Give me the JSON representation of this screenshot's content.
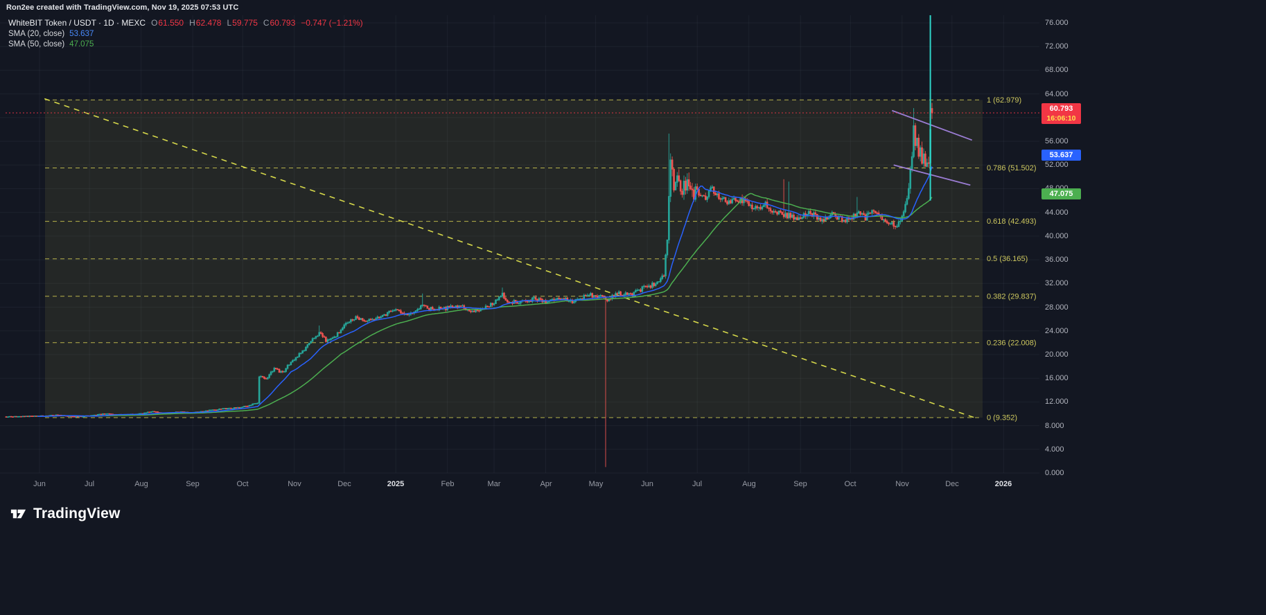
{
  "header": {
    "created_text": "Ron2ee created with TradingView.com, Nov 19, 2025 07:53 UTC"
  },
  "legend": {
    "title": "WhiteBIT Token / USDT · 1D · MEXC",
    "ohlc": {
      "o_label": "O",
      "o_value": "61.550",
      "h_label": "H",
      "h_value": "62.478",
      "l_label": "L",
      "l_value": "59.775",
      "c_label": "C",
      "c_value": "60.793",
      "change": "−0.747 (−1.21%)"
    },
    "indicators": [
      {
        "label": "SMA (20, close)",
        "value": "53.637"
      },
      {
        "label": "SMA (50, close)",
        "value": "47.075"
      }
    ]
  },
  "price_axis": {
    "labels": [
      {
        "text": "76.000",
        "price": 76
      },
      {
        "text": "72.000",
        "price": 72
      },
      {
        "text": "68.000",
        "price": 68
      },
      {
        "text": "64.000",
        "price": 64
      },
      {
        "text": "56.000",
        "price": 56
      },
      {
        "text": "52.000",
        "price": 52
      },
      {
        "text": "48.000",
        "price": 48
      },
      {
        "text": "44.000",
        "price": 44
      },
      {
        "text": "40.000",
        "price": 40
      },
      {
        "text": "36.000",
        "price": 36
      },
      {
        "text": "32.000",
        "price": 32
      },
      {
        "text": "28.000",
        "price": 28
      },
      {
        "text": "24.000",
        "price": 24
      },
      {
        "text": "20.000",
        "price": 20
      },
      {
        "text": "16.000",
        "price": 16
      },
      {
        "text": "12.000",
        "price": 12
      },
      {
        "text": "8.000",
        "price": 8
      },
      {
        "text": "4.000",
        "price": 4
      },
      {
        "text": "0.000",
        "price": 0
      }
    ],
    "badges": {
      "price": {
        "value": "60.793",
        "countdown": "16:06:10",
        "price": 60.793
      },
      "sma20": {
        "value": "53.637",
        "price": 53.637
      },
      "sma50": {
        "value": "47.075",
        "price": 47.075
      }
    }
  },
  "time_axis": {
    "labels": [
      {
        "text": "Jun",
        "day": 0
      },
      {
        "text": "Jul",
        "day": 30
      },
      {
        "text": "Aug",
        "day": 61
      },
      {
        "text": "Sep",
        "day": 92
      },
      {
        "text": "Oct",
        "day": 122
      },
      {
        "text": "Nov",
        "day": 153
      },
      {
        "text": "Dec",
        "day": 183
      },
      {
        "text": "2025",
        "day": 214,
        "year": true
      },
      {
        "text": "Feb",
        "day": 245
      },
      {
        "text": "Mar",
        "day": 273
      },
      {
        "text": "Apr",
        "day": 304
      },
      {
        "text": "May",
        "day": 334
      },
      {
        "text": "Jun",
        "day": 365
      },
      {
        "text": "Jul",
        "day": 395
      },
      {
        "text": "Aug",
        "day": 426
      },
      {
        "text": "Sep",
        "day": 457
      },
      {
        "text": "Oct",
        "day": 487
      },
      {
        "text": "Nov",
        "day": 518
      },
      {
        "text": "Dec",
        "day": 548
      },
      {
        "text": "2026",
        "day": 579,
        "year": true
      }
    ]
  },
  "footer": {
    "brand": "TradingView"
  },
  "colors": {
    "background": "#131722",
    "up": "#26a69a",
    "down": "#ef5350",
    "sma20": "#2962ff",
    "sma50": "#4caf50",
    "fib": "#b9b44b",
    "fib_label": "#cdc75e",
    "fib_zone": "rgba(187,182,74,0.10)",
    "trend": "#d6d84a",
    "channel": "#9b7dd4",
    "price_line": "#f23645",
    "spike": "#2fd5c8",
    "badge_price": "#f23645",
    "badge_sma20": "#2962ff",
    "badge_sma50": "#4caf50"
  },
  "chart_data": {
    "type": "candlestick",
    "symbol": "WhiteBIT Token / USDT",
    "exchange": "MEXC",
    "interval": "1D",
    "title": "WhiteBIT Token / USDT · 1D · MEXC",
    "last": {
      "open": 61.55,
      "high": 62.478,
      "low": 59.775,
      "close": 60.793,
      "change": -0.747,
      "change_pct": -1.21
    },
    "sma": [
      {
        "window": 20,
        "value": 53.637
      },
      {
        "window": 50,
        "value": 47.075
      }
    ],
    "fib_levels": [
      {
        "level": 1,
        "price": 62.979,
        "label": "1 (62.979)"
      },
      {
        "level": 0.786,
        "price": 51.502,
        "label": "0.786 (51.502)"
      },
      {
        "level": 0.618,
        "price": 42.493,
        "label": "0.618 (42.493)"
      },
      {
        "level": 0.5,
        "price": 36.165,
        "label": "0.5 (36.165)"
      },
      {
        "level": 0.382,
        "price": 29.837,
        "label": "0.382 (29.837)"
      },
      {
        "level": 0.236,
        "price": 22.008,
        "label": "0.236 (22.008)"
      },
      {
        "level": 0,
        "price": 9.352,
        "label": "0 (9.352)"
      }
    ],
    "ylim": [
      0,
      77.5
    ],
    "day_range": [
      -20,
      536
    ],
    "current_price_line": 60.793,
    "price_anchors": [
      [
        -20,
        9.5
      ],
      [
        0,
        9.6
      ],
      [
        12,
        9.8
      ],
      [
        22,
        9.5
      ],
      [
        30,
        9.7
      ],
      [
        40,
        10.0
      ],
      [
        50,
        9.8
      ],
      [
        61,
        10.0
      ],
      [
        68,
        10.4
      ],
      [
        76,
        10.1
      ],
      [
        84,
        10.3
      ],
      [
        92,
        10.2
      ],
      [
        100,
        10.5
      ],
      [
        108,
        10.8
      ],
      [
        115,
        10.9
      ],
      [
        122,
        11.2
      ],
      [
        127,
        11.5
      ],
      [
        131,
        11.8
      ],
      [
        132,
        16.3
      ],
      [
        136,
        15.8
      ],
      [
        141,
        17.6
      ],
      [
        146,
        16.9
      ],
      [
        151,
        18.8
      ],
      [
        153,
        19.2
      ],
      [
        158,
        20.5
      ],
      [
        163,
        22.3
      ],
      [
        168,
        23.6
      ],
      [
        172,
        22.4
      ],
      [
        178,
        23.2
      ],
      [
        183,
        25.1
      ],
      [
        190,
        26.2
      ],
      [
        196,
        25.4
      ],
      [
        205,
        26.6
      ],
      [
        214,
        27.4
      ],
      [
        222,
        26.8
      ],
      [
        230,
        28.2
      ],
      [
        238,
        27.6
      ],
      [
        245,
        27.9
      ],
      [
        252,
        28.3
      ],
      [
        260,
        27.2
      ],
      [
        266,
        27.8
      ],
      [
        273,
        28.6
      ],
      [
        278,
        30.3
      ],
      [
        281,
        28.7
      ],
      [
        290,
        29.1
      ],
      [
        298,
        29.4
      ],
      [
        304,
        29.0
      ],
      [
        312,
        29.6
      ],
      [
        320,
        28.9
      ],
      [
        327,
        29.8
      ],
      [
        334,
        30.1
      ],
      [
        341,
        29.4
      ],
      [
        348,
        30.4
      ],
      [
        355,
        30.1
      ],
      [
        361,
        31.0
      ],
      [
        365,
        31.4
      ],
      [
        371,
        32.2
      ],
      [
        375,
        33.5
      ],
      [
        377,
        39.0
      ],
      [
        378,
        47.0
      ],
      [
        379,
        52.5
      ],
      [
        381,
        49.0
      ],
      [
        383,
        51.5
      ],
      [
        386,
        47.5
      ],
      [
        389,
        49.5
      ],
      [
        392,
        46.8
      ],
      [
        395,
        47.6
      ],
      [
        400,
        46.2
      ],
      [
        404,
        48.1
      ],
      [
        408,
        46.6
      ],
      [
        413,
        45.6
      ],
      [
        418,
        46.4
      ],
      [
        422,
        45.9
      ],
      [
        426,
        45.4
      ],
      [
        431,
        44.6
      ],
      [
        436,
        45.3
      ],
      [
        441,
        44.2
      ],
      [
        446,
        43.8
      ],
      [
        451,
        43.4
      ],
      [
        457,
        43.1
      ],
      [
        463,
        44.0
      ],
      [
        469,
        42.8
      ],
      [
        475,
        43.6
      ],
      [
        481,
        42.9
      ],
      [
        487,
        42.6
      ],
      [
        491,
        44.3
      ],
      [
        496,
        43.1
      ],
      [
        501,
        44.4
      ],
      [
        506,
        42.9
      ],
      [
        511,
        42.2
      ],
      [
        515,
        41.6
      ],
      [
        518,
        43.2
      ],
      [
        521,
        45.8
      ],
      [
        523,
        50.5
      ],
      [
        524,
        54.0
      ],
      [
        525,
        58.2
      ],
      [
        526,
        55.0
      ],
      [
        527,
        57.4
      ],
      [
        528,
        53.2
      ],
      [
        529,
        55.6
      ],
      [
        530,
        52.8
      ],
      [
        531,
        54.2
      ],
      [
        532,
        51.6
      ],
      [
        533,
        52.4
      ],
      [
        534,
        51.9
      ],
      [
        535,
        57.5
      ],
      [
        536,
        60.793
      ]
    ],
    "special_wicks": [
      {
        "day": 168,
        "high": 24.9
      },
      {
        "day": 230,
        "high": 30.3
      },
      {
        "day": 278,
        "high": 31.3
      },
      {
        "day": 340,
        "low": 1.0
      },
      {
        "day": 378,
        "high": 57.3
      },
      {
        "day": 447,
        "high": 49.6
      },
      {
        "day": 450,
        "high": 49.2
      },
      {
        "day": 491,
        "high": 46.6
      },
      {
        "day": 525,
        "high": 61.6
      }
    ],
    "spike_line": {
      "day": 535,
      "from": 46.0,
      "to": 77.3
    },
    "trendline": {
      "from_day": 3,
      "from_price": 63.2,
      "to_day": 561,
      "to_price": 9.4
    },
    "channel_lines": [
      {
        "from_day": 512,
        "from_price": 61.2,
        "to_day": 560,
        "to_price": 56.2
      },
      {
        "from_day": 513,
        "from_price": 52.0,
        "to_day": 559,
        "to_price": 48.6
      }
    ]
  }
}
